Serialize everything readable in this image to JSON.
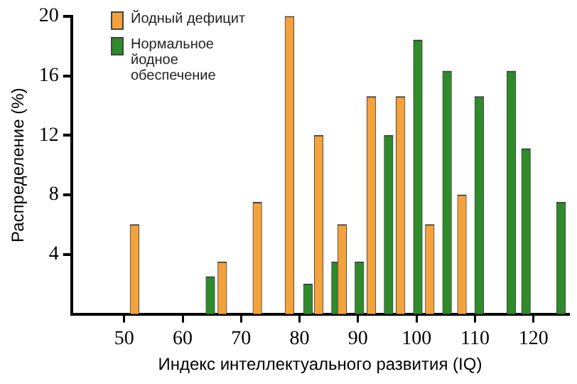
{
  "chart_data": {
    "type": "bar",
    "xlabel": "Индекс интеллектуального развития (IQ)",
    "ylabel": "Распределение (%)",
    "xlim": [
      41,
      126
    ],
    "xticks": [
      50,
      60,
      70,
      80,
      90,
      100,
      110,
      120
    ],
    "ylim": [
      0,
      20
    ],
    "yticks": [
      4,
      8,
      12,
      16,
      20
    ],
    "grid": false,
    "legend": "top left",
    "series": [
      {
        "name": "Йодный дефицит",
        "color": "#f4a23c",
        "x": [
          52.5,
          67.5,
          73.5,
          79,
          84,
          88,
          93,
          98,
          103,
          108.5
        ],
        "values": [
          6,
          3.5,
          7.5,
          20,
          12,
          6,
          14.6,
          14.6,
          6,
          8
        ]
      },
      {
        "name": "Нормальное йодное обеспечение",
        "color": "#2e8b2a",
        "x": [
          64,
          80.7,
          85.5,
          89.5,
          94.5,
          99.5,
          104.5,
          110,
          115.5,
          118,
          124
        ],
        "values": [
          2.5,
          2,
          3.5,
          3.5,
          12,
          18.4,
          16.3,
          14.6,
          16.3,
          11.1,
          7.5
        ]
      }
    ]
  }
}
